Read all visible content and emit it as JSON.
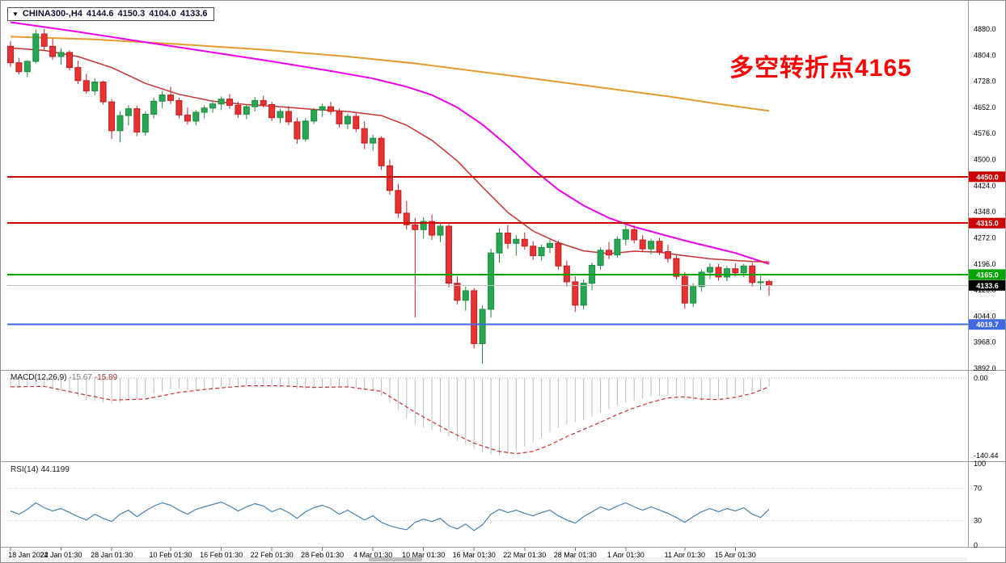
{
  "header": {
    "symbol": "CHINA300-,H4",
    "open": "4144.6",
    "high": "4150.3",
    "low": "4104.0",
    "close": "4133.6"
  },
  "annotation": {
    "text": "多空转折点4165",
    "color": "#FF0000"
  },
  "chart_data": {
    "type": "candlestick",
    "title": "CHINA300- H4 chart with MACD and RSI",
    "price_axis": {
      "min": 3892.0,
      "max": 4880.0,
      "ticks": [
        "4880.0",
        "4804.0",
        "4728.0",
        "4652.0",
        "4576.0",
        "4500.0",
        "4424.0",
        "4348.0",
        "4272.0",
        "4196.0",
        "4120.0",
        "4044.0",
        "3968.0",
        "3892.0"
      ]
    },
    "colors": {
      "up": "#29A653",
      "up_border": "#1C8A3C",
      "down": "#E63232",
      "down_border": "#C02020"
    },
    "candles": [
      [
        4830,
        4845,
        4770,
        4782
      ],
      [
        4782,
        4796,
        4748,
        4756
      ],
      [
        4756,
        4790,
        4740,
        4786
      ],
      [
        4786,
        4878,
        4780,
        4866
      ],
      [
        4866,
        4880,
        4820,
        4830
      ],
      [
        4830,
        4852,
        4790,
        4800
      ],
      [
        4800,
        4824,
        4776,
        4812
      ],
      [
        4812,
        4818,
        4760,
        4768
      ],
      [
        4768,
        4788,
        4720,
        4730
      ],
      [
        4730,
        4750,
        4692,
        4700
      ],
      [
        4700,
        4736,
        4688,
        4726
      ],
      [
        4726,
        4730,
        4660,
        4668
      ],
      [
        4668,
        4676,
        4560,
        4584
      ],
      [
        4584,
        4640,
        4550,
        4628
      ],
      [
        4628,
        4658,
        4600,
        4648
      ],
      [
        4648,
        4656,
        4568,
        4580
      ],
      [
        4580,
        4640,
        4570,
        4632
      ],
      [
        4632,
        4680,
        4620,
        4670
      ],
      [
        4670,
        4700,
        4650,
        4688
      ],
      [
        4688,
        4712,
        4662,
        4672
      ],
      [
        4672,
        4680,
        4620,
        4630
      ],
      [
        4630,
        4652,
        4602,
        4612
      ],
      [
        4612,
        4644,
        4600,
        4638
      ],
      [
        4638,
        4658,
        4620,
        4650
      ],
      [
        4650,
        4672,
        4636,
        4662
      ],
      [
        4662,
        4684,
        4644,
        4676
      ],
      [
        4676,
        4690,
        4648,
        4658
      ],
      [
        4658,
        4668,
        4622,
        4632
      ],
      [
        4632,
        4660,
        4618,
        4654
      ],
      [
        4654,
        4682,
        4640,
        4672
      ],
      [
        4672,
        4686,
        4652,
        4660
      ],
      [
        4660,
        4668,
        4612,
        4622
      ],
      [
        4622,
        4648,
        4606,
        4640
      ],
      [
        4640,
        4656,
        4600,
        4610
      ],
      [
        4610,
        4622,
        4546,
        4560
      ],
      [
        4560,
        4620,
        4552,
        4612
      ],
      [
        4612,
        4650,
        4604,
        4644
      ],
      [
        4644,
        4662,
        4624,
        4654
      ],
      [
        4654,
        4668,
        4630,
        4640
      ],
      [
        4640,
        4648,
        4594,
        4604
      ],
      [
        4604,
        4634,
        4588,
        4626
      ],
      [
        4626,
        4636,
        4580,
        4590
      ],
      [
        4590,
        4612,
        4530,
        4548
      ],
      [
        4548,
        4572,
        4526,
        4562
      ],
      [
        4562,
        4568,
        4470,
        4482
      ],
      [
        4482,
        4500,
        4398,
        4410
      ],
      [
        4410,
        4430,
        4330,
        4344
      ],
      [
        4344,
        4380,
        4296,
        4310
      ],
      [
        4310,
        4330,
        4040,
        4296
      ],
      [
        4296,
        4332,
        4270,
        4320
      ],
      [
        4320,
        4340,
        4266,
        4280
      ],
      [
        4280,
        4316,
        4260,
        4306
      ],
      [
        4306,
        4312,
        4128,
        4140
      ],
      [
        4140,
        4160,
        4078,
        4090
      ],
      [
        4090,
        4130,
        4060,
        4118
      ],
      [
        4118,
        4126,
        3950,
        3964
      ],
      [
        3964,
        4076,
        3905,
        4064
      ],
      [
        4064,
        4240,
        4040,
        4228
      ],
      [
        4228,
        4300,
        4200,
        4286
      ],
      [
        4286,
        4310,
        4240,
        4256
      ],
      [
        4256,
        4280,
        4220,
        4268
      ],
      [
        4268,
        4288,
        4238,
        4248
      ],
      [
        4248,
        4262,
        4208,
        4220
      ],
      [
        4220,
        4252,
        4206,
        4244
      ],
      [
        4244,
        4268,
        4228,
        4256
      ],
      [
        4256,
        4264,
        4180,
        4190
      ],
      [
        4190,
        4206,
        4130,
        4144
      ],
      [
        4144,
        4160,
        4056,
        4076
      ],
      [
        4076,
        4150,
        4064,
        4140
      ],
      [
        4140,
        4200,
        4120,
        4192
      ],
      [
        4192,
        4244,
        4180,
        4236
      ],
      [
        4236,
        4260,
        4210,
        4222
      ],
      [
        4222,
        4276,
        4214,
        4268
      ],
      [
        4268,
        4310,
        4250,
        4296
      ],
      [
        4296,
        4308,
        4256,
        4266
      ],
      [
        4266,
        4280,
        4230,
        4240
      ],
      [
        4240,
        4270,
        4224,
        4262
      ],
      [
        4262,
        4272,
        4222,
        4232
      ],
      [
        4232,
        4252,
        4200,
        4212
      ],
      [
        4212,
        4224,
        4150,
        4160
      ],
      [
        4160,
        4172,
        4066,
        4082
      ],
      [
        4082,
        4140,
        4070,
        4130
      ],
      [
        4130,
        4180,
        4116,
        4172
      ],
      [
        4172,
        4198,
        4152,
        4186
      ],
      [
        4186,
        4196,
        4148,
        4158
      ],
      [
        4158,
        4190,
        4146,
        4182
      ],
      [
        4182,
        4198,
        4160,
        4170
      ],
      [
        4170,
        4196,
        4158,
        4190
      ],
      [
        4190,
        4200,
        4130,
        4142
      ],
      [
        4142,
        4166,
        4120,
        4144
      ],
      [
        4144.6,
        4150.3,
        4104.0,
        4133.6
      ]
    ],
    "moving_averages": [
      {
        "name": "ma-slow-orange",
        "color": "#E39B2D",
        "width": 2,
        "points": [
          [
            0,
            4858
          ],
          [
            10,
            4850
          ],
          [
            20,
            4836
          ],
          [
            30,
            4820
          ],
          [
            40,
            4800
          ],
          [
            48,
            4780
          ],
          [
            55,
            4758
          ],
          [
            62,
            4736
          ],
          [
            70,
            4710
          ],
          [
            78,
            4684
          ],
          [
            84,
            4662
          ],
          [
            90,
            4642
          ]
        ]
      },
      {
        "name": "ma-mid-magenta",
        "color": "#EE00EE",
        "width": 2,
        "points": [
          [
            0,
            4900
          ],
          [
            8,
            4872
          ],
          [
            16,
            4842
          ],
          [
            24,
            4812
          ],
          [
            31,
            4786
          ],
          [
            38,
            4758
          ],
          [
            43,
            4736
          ],
          [
            47,
            4712
          ],
          [
            50,
            4688
          ],
          [
            53,
            4652
          ],
          [
            56,
            4602
          ],
          [
            59,
            4540
          ],
          [
            62,
            4472
          ],
          [
            65,
            4412
          ],
          [
            68,
            4366
          ],
          [
            71,
            4330
          ],
          [
            74,
            4304
          ],
          [
            77,
            4284
          ],
          [
            80,
            4264
          ],
          [
            83,
            4246
          ],
          [
            86,
            4228
          ],
          [
            88,
            4212
          ],
          [
            90,
            4196
          ]
        ]
      },
      {
        "name": "ma-fast-red",
        "color": "#C83232",
        "width": 1.5,
        "points": [
          [
            0,
            4825
          ],
          [
            4,
            4818
          ],
          [
            8,
            4800
          ],
          [
            12,
            4768
          ],
          [
            16,
            4722
          ],
          [
            20,
            4690
          ],
          [
            24,
            4670
          ],
          [
            28,
            4660
          ],
          [
            32,
            4654
          ],
          [
            36,
            4646
          ],
          [
            40,
            4640
          ],
          [
            44,
            4628
          ],
          [
            47,
            4600
          ],
          [
            50,
            4556
          ],
          [
            53,
            4496
          ],
          [
            56,
            4420
          ],
          [
            59,
            4346
          ],
          [
            62,
            4292
          ],
          [
            65,
            4258
          ],
          [
            68,
            4234
          ],
          [
            71,
            4226
          ],
          [
            74,
            4233
          ],
          [
            77,
            4230
          ],
          [
            80,
            4220
          ],
          [
            83,
            4211
          ],
          [
            86,
            4206
          ],
          [
            88,
            4203
          ],
          [
            90,
            4202
          ]
        ]
      }
    ],
    "hlines": [
      {
        "name": "resistance-line-4450",
        "price": 4450.0,
        "label": "4450.0",
        "color": "#CC0000"
      },
      {
        "name": "resistance-line-4315",
        "price": 4315.0,
        "label": "4315.0",
        "color": "#CC0000"
      },
      {
        "name": "pivot-line-4165",
        "price": 4165.0,
        "label": "4165.0",
        "color": "#00A400"
      },
      {
        "name": "support-line-4019",
        "price": 4019.7,
        "label": "4019.7",
        "color": "#4169E1"
      }
    ],
    "price_marker": {
      "price": 4133.6,
      "label": "4133.6",
      "bg": "#000000"
    },
    "macd": {
      "label": "MACD(12,26,9)",
      "value_main": "-15.67",
      "value_signal": "-15.89",
      "hist_color": "#BDBDBD",
      "signal_color": "#CC3333",
      "axis": {
        "max": 0,
        "min": -140.44,
        "max_label": "0.00",
        "min_label": "-140.44"
      },
      "values": [
        -14,
        -18,
        -16,
        -12,
        -14,
        -18,
        -22,
        -28,
        -34,
        -40,
        -42,
        -44,
        -46,
        -44,
        -40,
        -38,
        -34,
        -28,
        -24,
        -20,
        -20,
        -22,
        -22,
        -20,
        -18,
        -16,
        -14,
        -14,
        -13,
        -12,
        -12,
        -14,
        -15,
        -16,
        -20,
        -20,
        -18,
        -16,
        -15,
        -16,
        -16,
        -18,
        -22,
        -24,
        -32,
        -44,
        -58,
        -72,
        -84,
        -90,
        -94,
        -98,
        -106,
        -114,
        -120,
        -128,
        -134,
        -138,
        -140.44,
        -138,
        -132,
        -124,
        -116,
        -107,
        -98,
        -90,
        -84,
        -80,
        -76,
        -70,
        -63,
        -56,
        -50,
        -44,
        -40,
        -37,
        -34,
        -32,
        -32,
        -34,
        -38,
        -40,
        -41,
        -40,
        -38,
        -35,
        -32,
        -29,
        -26,
        -21,
        -15.67
      ],
      "signal_points": [
        [
          0,
          -16
        ],
        [
          4,
          -15
        ],
        [
          8,
          -28
        ],
        [
          12,
          -40
        ],
        [
          16,
          -38
        ],
        [
          20,
          -26
        ],
        [
          24,
          -19
        ],
        [
          28,
          -14
        ],
        [
          32,
          -14
        ],
        [
          36,
          -17
        ],
        [
          40,
          -16
        ],
        [
          44,
          -24
        ],
        [
          48,
          -62
        ],
        [
          52,
          -96
        ],
        [
          55,
          -118
        ],
        [
          58,
          -133
        ],
        [
          60,
          -137
        ],
        [
          62,
          -133
        ],
        [
          64,
          -121
        ],
        [
          66,
          -106
        ],
        [
          68,
          -93
        ],
        [
          70,
          -80
        ],
        [
          72,
          -66
        ],
        [
          74,
          -54
        ],
        [
          76,
          -44
        ],
        [
          78,
          -36
        ],
        [
          80,
          -34
        ],
        [
          82,
          -38
        ],
        [
          84,
          -39
        ],
        [
          86,
          -35
        ],
        [
          88,
          -28
        ],
        [
          90,
          -15.89
        ]
      ]
    },
    "rsi": {
      "label": "RSI(14)",
      "value": "44.1199",
      "color": "#4682B4",
      "range": [
        0,
        100
      ],
      "levels": [
        70,
        30
      ],
      "axis_labels": [
        "100",
        "70",
        "30",
        "0"
      ],
      "values": [
        42,
        38,
        44,
        52,
        46,
        42,
        45,
        40,
        35,
        31,
        38,
        33,
        29,
        38,
        43,
        35,
        42,
        48,
        52,
        49,
        43,
        38,
        44,
        47,
        50,
        53,
        48,
        42,
        47,
        51,
        48,
        41,
        45,
        40,
        33,
        41,
        46,
        49,
        45,
        38,
        43,
        37,
        31,
        36,
        28,
        24,
        21,
        19,
        28,
        32,
        29,
        33,
        24,
        20,
        26,
        18,
        25,
        38,
        44,
        40,
        43,
        39,
        36,
        40,
        43,
        36,
        31,
        27,
        35,
        41,
        47,
        43,
        48,
        52,
        47,
        43,
        47,
        43,
        39,
        34,
        28,
        35,
        41,
        45,
        41,
        45,
        42,
        46,
        38,
        34,
        44.12
      ]
    },
    "time_labels": [
      {
        "i": 0,
        "t": "18 Jan 2022"
      },
      {
        "i": 6,
        "t": "24 Jan 01:30"
      },
      {
        "i": 12,
        "t": "28 Jan 01:30"
      },
      {
        "i": 19,
        "t": "10 Feb 01:30"
      },
      {
        "i": 25,
        "t": "16 Feb 01:30"
      },
      {
        "i": 31,
        "t": "22 Feb 01:30"
      },
      {
        "i": 37,
        "t": "28 Feb 01:30"
      },
      {
        "i": 43,
        "t": "4 Mar 01:30"
      },
      {
        "i": 49,
        "t": "10 Mar 01:30"
      },
      {
        "i": 55,
        "t": "16 Mar 01:30"
      },
      {
        "i": 61,
        "t": "22 Mar 01:30"
      },
      {
        "i": 67,
        "t": "28 Mar 01:30"
      },
      {
        "i": 73,
        "t": "1 Apr 01:30"
      },
      {
        "i": 80,
        "t": "11 Apr 01:30"
      },
      {
        "i": 86,
        "t": "15 Apr 01:30"
      }
    ]
  }
}
